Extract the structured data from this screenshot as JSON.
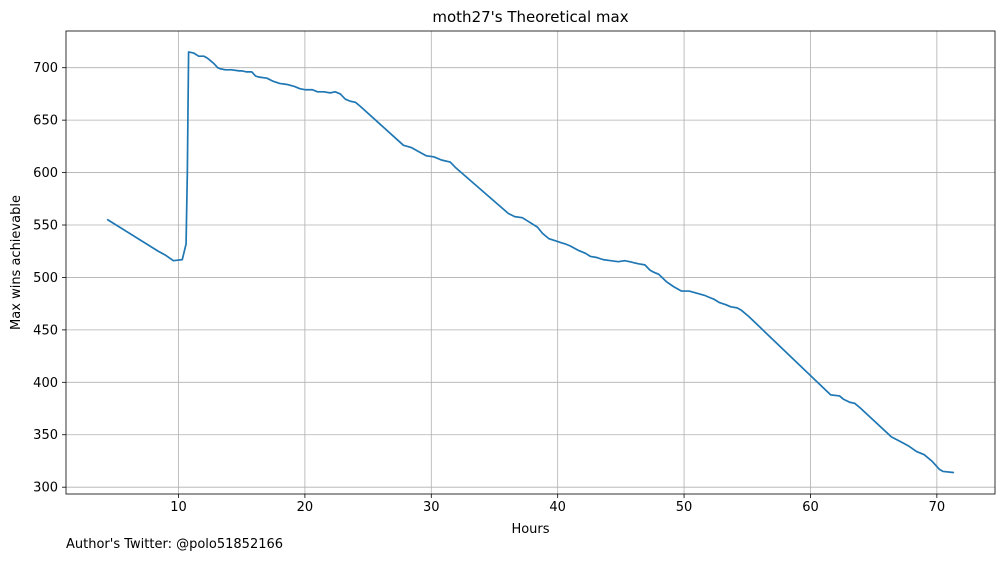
{
  "footer": {
    "text": "Author's Twitter: @polo51852166"
  },
  "chart_data": {
    "type": "line",
    "title": "moth27's Theoretical max",
    "xlabel": "Hours",
    "ylabel": "Max wins achievable",
    "xlim": [
      1.1,
      74.6
    ],
    "ylim": [
      293.5,
      735
    ],
    "xticks": [
      10,
      20,
      30,
      40,
      50,
      60,
      70
    ],
    "yticks": [
      300,
      350,
      400,
      450,
      500,
      550,
      600,
      650,
      700
    ],
    "grid": true,
    "colors": {
      "line": "#1f77b4",
      "grid": "#b0b0b0",
      "axes": "#000000"
    },
    "series": [
      {
        "x": [
          4.4,
          8.4,
          9.0,
          9.6,
          10.3,
          10.6,
          10.7,
          10.8,
          11.2,
          11.6,
          12.0,
          12.3,
          12.6,
          12.8,
          13.1,
          13.3,
          13.7,
          14.2,
          14.8,
          15.0,
          15.4,
          15.8,
          16.1,
          16.4,
          17.0,
          17.5,
          18.0,
          18.6,
          19.2,
          19.6,
          20.0,
          20.6,
          21.0,
          21.5,
          22.0,
          22.4,
          22.8,
          23.2,
          23.6,
          24.0,
          24.4,
          27.8,
          28.4,
          29.0,
          29.6,
          30.2,
          30.8,
          31.5,
          31.9,
          36.1,
          36.6,
          37.2,
          37.6,
          38.4,
          38.8,
          39.3,
          39.8,
          40.3,
          40.6,
          41.0,
          41.6,
          42.2,
          42.6,
          43.1,
          43.6,
          44.2,
          44.8,
          45.3,
          45.7,
          46.4,
          46.9,
          47.3,
          47.6,
          48.0,
          48.6,
          49.2,
          49.8,
          50.4,
          51.0,
          51.6,
          52.0,
          52.4,
          52.8,
          53.3,
          53.7,
          54.2,
          54.5,
          55.1,
          61.6,
          62.3,
          62.6,
          63.1,
          63.5,
          63.9,
          66.4,
          67.2,
          67.8,
          68.4,
          69.0,
          69.6,
          70.2,
          70.5,
          71.3
        ],
        "y": [
          555,
          525,
          521,
          516,
          517,
          532,
          600,
          715,
          714,
          711,
          711,
          709,
          706,
          704,
          700,
          699,
          698,
          698,
          697,
          697,
          696,
          696,
          692,
          691,
          690,
          687,
          685,
          684,
          682,
          680,
          679,
          679,
          677,
          677,
          676,
          677,
          675,
          670,
          668,
          667,
          663,
          626,
          624,
          620,
          616,
          615,
          612,
          610,
          605,
          561,
          558,
          557,
          554,
          548,
          542,
          537,
          535,
          533,
          532,
          530,
          526,
          523,
          520,
          519,
          517,
          516,
          515,
          516,
          515,
          513,
          512,
          507,
          505,
          503,
          496,
          491,
          487,
          487,
          485,
          483,
          481,
          479,
          476,
          474,
          472,
          471,
          469,
          463,
          388,
          387,
          384,
          381,
          380,
          376,
          348,
          343,
          339,
          334,
          331,
          325,
          317,
          315,
          314
        ]
      }
    ]
  }
}
